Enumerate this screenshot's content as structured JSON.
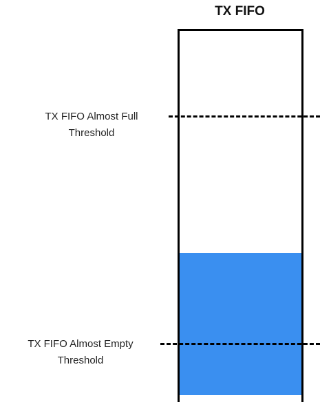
{
  "title": "TX FIFO",
  "fifo": {
    "fill_level": 0.39,
    "fill_color": "#3a8ff0",
    "border_color": "#000000"
  },
  "thresholds": {
    "almost_full": {
      "line1": "TX FIFO Almost Full",
      "line2": "Threshold"
    },
    "almost_empty": {
      "line1": "TX FIFO Almost Empty",
      "line2": "Threshold"
    }
  }
}
